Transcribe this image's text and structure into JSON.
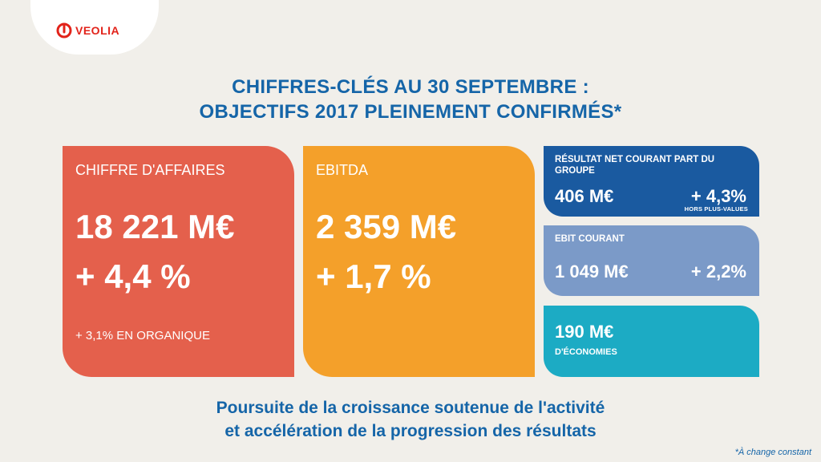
{
  "brand": {
    "name": "VEOLIA",
    "color": "#e2231a"
  },
  "title": {
    "line1": "CHIFFRES-CLÉS AU 30 SEPTEMBRE :",
    "line2": "OBJECTIFS 2017 PLEINEMENT CONFIRMÉS*"
  },
  "revenue": {
    "label": "CHIFFRE D'AFFAIRES",
    "value": "18 221 M€",
    "change": "+ 4,4 %",
    "organic": "+ 3,1% EN ORGANIQUE",
    "color": "#e4604c"
  },
  "ebitda": {
    "label": "EBITDA",
    "value": "2 359 M€",
    "change": "+ 1,7 %",
    "color": "#f4a02a"
  },
  "net_income": {
    "label": "RÉSULTAT NET COURANT PART DU GROUPE",
    "value": "406 M€",
    "change": "+ 4,3%",
    "note": "HORS PLUS-VALUES",
    "color": "#1a5aa0"
  },
  "ebit": {
    "label": "EBIT COURANT",
    "value": "1 049 M€",
    "change": "+ 2,2%",
    "color": "#7b9ac8"
  },
  "savings": {
    "value": "190 M€",
    "label": "D'ÉCONOMIES",
    "color": "#1cabc4"
  },
  "tagline": {
    "line1": "Poursuite de la croissance soutenue de l'activité",
    "line2": "et accélération de la progression des résultats"
  },
  "footnote": "*À change constant"
}
